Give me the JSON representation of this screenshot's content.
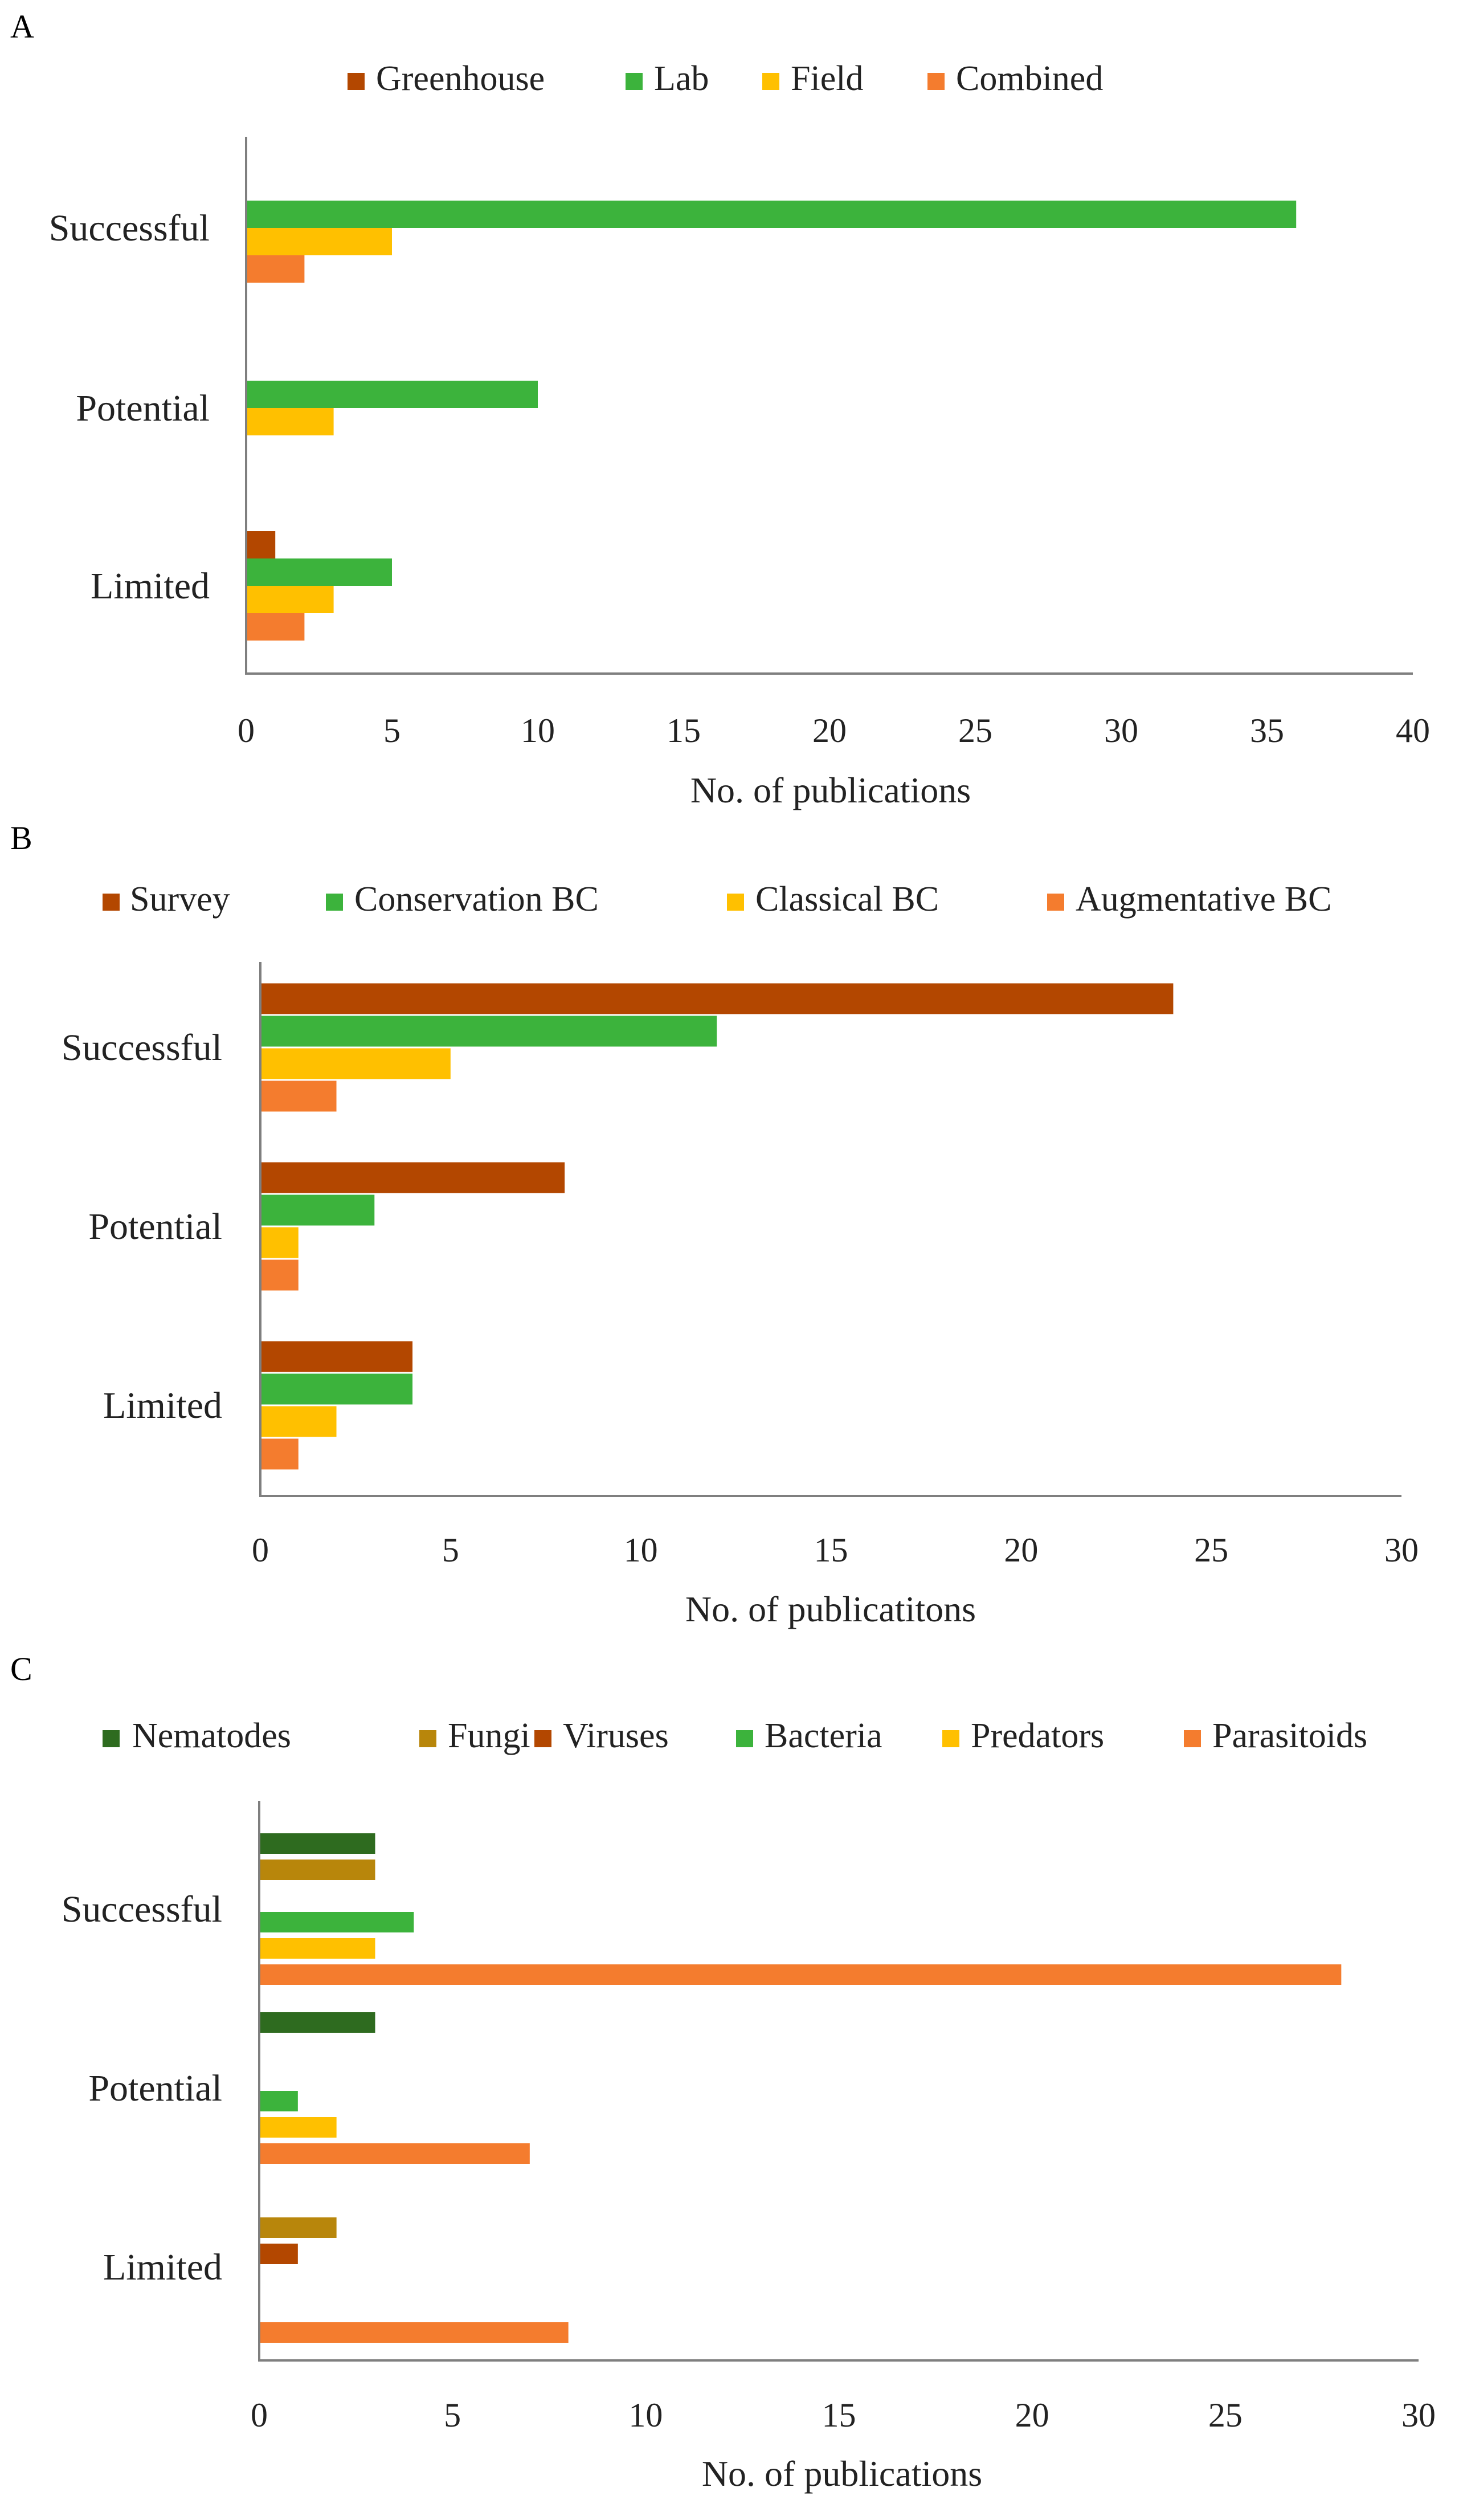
{
  "chart_data": [
    {
      "type": "bar",
      "orientation": "horizontal",
      "panel_label": "A",
      "categories": [
        "Successful",
        "Potential",
        "Limited"
      ],
      "series": [
        {
          "name": "Greenhouse",
          "color": "#b34700",
          "values": [
            0,
            0,
            1
          ]
        },
        {
          "name": "Lab",
          "color": "#3cb33c",
          "values": [
            36,
            10,
            5
          ]
        },
        {
          "name": "Field",
          "color": "#ffc000",
          "values": [
            5,
            3,
            3
          ]
        },
        {
          "name": "Combined",
          "color": "#f47c2e",
          "values": [
            2,
            0,
            2
          ]
        }
      ],
      "xlabel": "No. of publications",
      "xlim": [
        0,
        40
      ],
      "xticks": [
        "0",
        "5",
        "10",
        "15",
        "20",
        "25",
        "30",
        "35",
        "40"
      ],
      "legend_position": "top"
    },
    {
      "type": "bar",
      "orientation": "horizontal",
      "panel_label": "B",
      "categories": [
        "Successful",
        "Potential",
        "Limited"
      ],
      "series": [
        {
          "name": "Survey",
          "color": "#b34700",
          "values": [
            24,
            8,
            4
          ]
        },
        {
          "name": "Conservation BC",
          "color": "#3cb33c",
          "values": [
            12,
            3,
            4
          ]
        },
        {
          "name": "Classical BC",
          "color": "#ffc000",
          "values": [
            5,
            1,
            2
          ]
        },
        {
          "name": "Augmentative BC",
          "color": "#f47c2e",
          "values": [
            2,
            1,
            1
          ]
        }
      ],
      "xlabel": "No. of publicatitons",
      "xlim": [
        0,
        30
      ],
      "xticks": [
        "0",
        "5",
        "10",
        "15",
        "20",
        "25",
        "30"
      ],
      "legend_position": "top"
    },
    {
      "type": "bar",
      "orientation": "horizontal",
      "panel_label": "C",
      "categories": [
        "Successful",
        "Potential",
        "Limited"
      ],
      "series": [
        {
          "name": "Nematodes",
          "color": "#2e6b1f",
          "values": [
            3,
            3,
            0
          ]
        },
        {
          "name": "Fungi",
          "color": "#b8860b",
          "values": [
            3,
            0,
            2
          ]
        },
        {
          "name": "Viruses",
          "color": "#b34700",
          "values": [
            0,
            0,
            1
          ]
        },
        {
          "name": "Bacteria",
          "color": "#3cb33c",
          "values": [
            4,
            1,
            0
          ]
        },
        {
          "name": "Predators",
          "color": "#ffc000",
          "values": [
            3,
            2,
            0
          ]
        },
        {
          "name": "Parasitoids",
          "color": "#f47c2e",
          "values": [
            28,
            7,
            8
          ]
        }
      ],
      "xlabel": "No. of publications",
      "xlim": [
        0,
        30
      ],
      "xticks": [
        "0",
        "5",
        "10",
        "15",
        "20",
        "25",
        "30"
      ],
      "legend_position": "top"
    }
  ]
}
